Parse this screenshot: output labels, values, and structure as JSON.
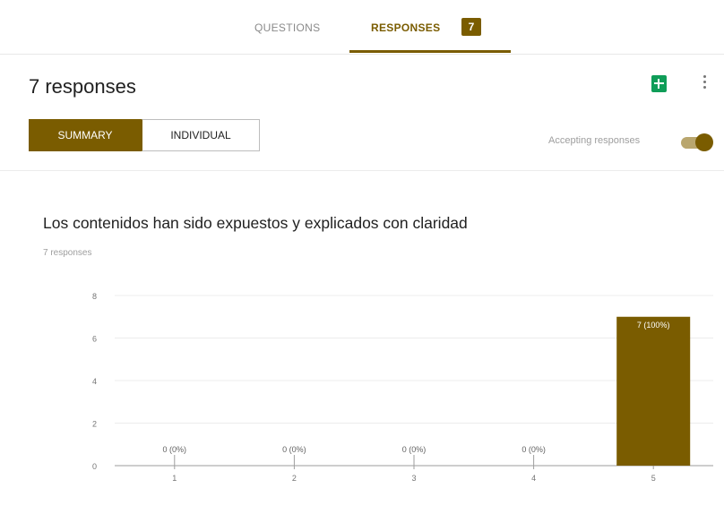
{
  "tabs": {
    "questions_label": "QUESTIONS",
    "responses_label": "RESPONSES",
    "responses_badge": "7"
  },
  "header": {
    "title": "7 responses",
    "sheets_icon": "google-sheets-icon",
    "more_icon": "more-vert-icon"
  },
  "view_toggle": {
    "summary_label": "SUMMARY",
    "individual_label": "INDIVIDUAL",
    "selected": "SUMMARY"
  },
  "accepting": {
    "label": "Accepting responses",
    "enabled": true
  },
  "question": {
    "title": "Los contenidos han sido expuestos y explicados con claridad",
    "count_label": "7 responses"
  },
  "colors": {
    "accent": "#7a5c00",
    "sheets_green": "#0f9d58"
  },
  "chart_data": {
    "type": "bar",
    "categories": [
      "1",
      "2",
      "3",
      "4",
      "5"
    ],
    "values": [
      0,
      0,
      0,
      0,
      7
    ],
    "data_labels": [
      "0 (0%)",
      "0 (0%)",
      "0 (0%)",
      "0 (0%)",
      "7 (100%)"
    ],
    "y_ticks": [
      0,
      2,
      4,
      6,
      8
    ],
    "ylim": [
      0,
      8
    ],
    "grid": true,
    "color": "#7a5c00"
  }
}
